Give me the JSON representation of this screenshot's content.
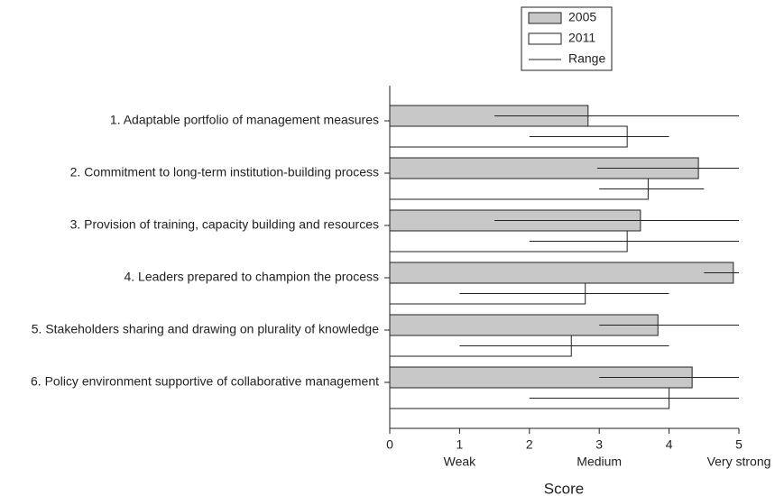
{
  "chart_data": {
    "type": "hbar_range",
    "xlabel": "Score",
    "categories": [
      "1. Adaptable portfolio of management measures",
      "2. Commitment to long-term institution-building process",
      "3. Provision of training, capacity building and resources",
      "4. Leaders prepared to champion the process",
      "5. Stakeholders sharing and drawing on plurality of knowledge",
      "6. Policy environment supportive of collaborative management"
    ],
    "series": [
      {
        "name": "2005",
        "color": "#c8c8c8",
        "values": [
          2.84,
          4.42,
          3.59,
          4.92,
          3.84,
          4.33
        ],
        "range_low": [
          1.5,
          2.97,
          1.5,
          4.5,
          3.0,
          3.0
        ],
        "range_high": [
          5,
          5,
          5,
          5,
          5,
          5
        ]
      },
      {
        "name": "2011",
        "color": "#ffffff",
        "values": [
          3.4,
          3.7,
          3.4,
          2.8,
          2.6,
          4.0
        ],
        "range_low": [
          2.0,
          3.0,
          2.0,
          1.0,
          1.0,
          2.0
        ],
        "range_high": [
          4.0,
          4.5,
          5,
          4.0,
          4.0,
          5
        ]
      }
    ],
    "range_label": "Range",
    "xlim": [
      0,
      5
    ],
    "xticks": [
      0,
      1,
      2,
      3,
      4,
      5
    ],
    "xtick_descriptors": [
      {
        "value": 1,
        "label": "Weak"
      },
      {
        "value": 3,
        "label": "Medium"
      },
      {
        "value": 5,
        "label": "Very strong"
      }
    ],
    "legend": "top-right"
  }
}
